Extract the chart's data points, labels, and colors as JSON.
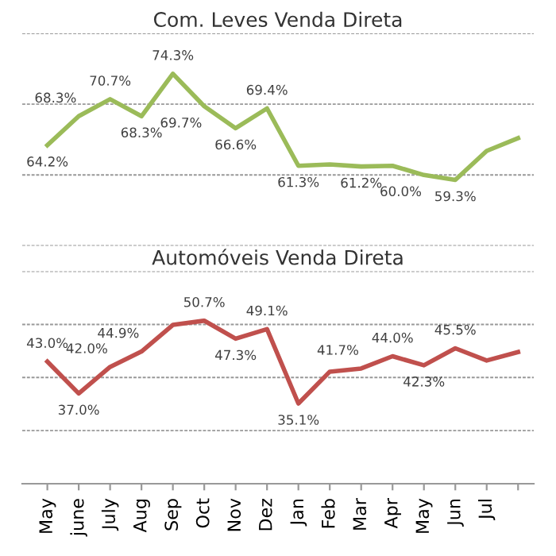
{
  "chart_data": [
    {
      "type": "line",
      "title": "Com. Leves Venda Direta",
      "categories": [
        null,
        null,
        null,
        null,
        null,
        null,
        null,
        null,
        null,
        null,
        null,
        null,
        null,
        null,
        null,
        null
      ],
      "series": [
        {
          "color": "#9bbb59",
          "values": [
            64.2,
            68.3,
            70.7,
            68.3,
            74.3,
            69.7,
            66.6,
            69.4,
            61.3,
            61.5,
            61.2,
            61.3,
            60.0,
            59.3,
            63.4,
            65.2
          ],
          "value_labels": [
            "64.2%",
            "68.3%",
            "70.7%",
            "68.3%",
            "74.3%",
            "69.7%",
            "66.6%",
            "69.4%",
            "61.3%",
            null,
            "61.2%",
            null,
            "60.0%",
            "59.3%",
            null,
            null
          ]
        }
      ],
      "ylim": [
        50,
        80
      ],
      "yticks": [
        50,
        60,
        70,
        80
      ],
      "grid": "y",
      "tick_labels": false,
      "marker": "none",
      "line_style": "solid"
    },
    {
      "type": "line",
      "title": "Automóveis Venda Direta",
      "categories": [
        "May",
        "june",
        "July",
        "Aug",
        "Sep",
        "Oct",
        "Nov",
        "Dez",
        "Jan",
        "Feb",
        "Mar",
        "Apr",
        "May",
        "Jun",
        "Jul",
        null
      ],
      "series": [
        {
          "color": "#c0504d",
          "values": [
            43.0,
            37.0,
            42.0,
            44.9,
            49.9,
            50.7,
            47.3,
            49.1,
            35.1,
            41.1,
            41.7,
            44.0,
            42.3,
            45.5,
            43.2,
            44.8
          ],
          "value_labels": [
            "43.0%",
            "37.0%",
            "42.0%",
            "44.9%",
            null,
            "50.7%",
            "47.3%",
            "49.1%",
            "35.1%",
            null,
            "41.7%",
            "44.0%",
            "42.3%",
            "45.5%",
            null,
            null
          ]
        }
      ],
      "ylim": [
        20,
        60
      ],
      "yticks": [
        20,
        30,
        40,
        50,
        60
      ],
      "grid": "y",
      "tick_labels": "x",
      "marker": "none",
      "line_style": "solid"
    }
  ]
}
